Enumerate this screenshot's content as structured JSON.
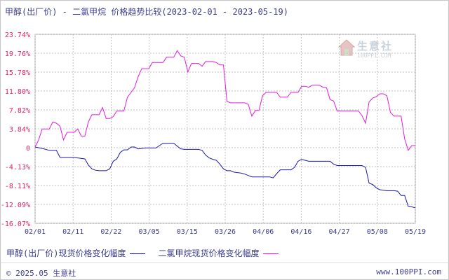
{
  "title": "甲醇(出厂价) - 二氯甲烷 价格趋势比较(2023-02-01 - 2023-05-19)",
  "watermark": {
    "name": "生意社",
    "url": "100PPI.COM",
    "icon": "house-logo-icon"
  },
  "footer": {
    "copyright": "© 2025.05 生意社",
    "site": "www.100PPI.com"
  },
  "colors": {
    "series1": "#1a1aa8",
    "series2": "#e21ce0",
    "ytick": "#e0245e",
    "text": "#3d3d8f",
    "grid": "#c0c0c0"
  },
  "chart_data": {
    "type": "line",
    "x_ticks": [
      "02/01",
      "02/11",
      "02/22",
      "03/05",
      "03/15",
      "03/26",
      "04/06",
      "04/16",
      "04/27",
      "05/08",
      "05/19"
    ],
    "y_ticks": [
      "23.74%",
      "19.76%",
      "15.78%",
      "11.80%",
      "7.82%",
      "3.84%",
      "0",
      "-4.13%",
      "-8.11%",
      "-12.09%",
      "-16.07%"
    ],
    "ylim": [
      -16.07,
      23.74
    ],
    "x_range": [
      "2023-02-01",
      "2023-05-19"
    ],
    "grid": true,
    "legend_position": "bottom",
    "series": [
      {
        "name": "甲醇(出厂价)现货价格变化幅度",
        "values": [
          [
            0,
            0
          ],
          [
            2,
            -0.3
          ],
          [
            4,
            -0.7
          ],
          [
            6,
            -0.7
          ],
          [
            7,
            -2.2
          ],
          [
            8,
            -2.2
          ],
          [
            9,
            -2.2
          ],
          [
            10,
            -2.2
          ],
          [
            11,
            -2.2
          ],
          [
            12,
            -2.3
          ],
          [
            14,
            -2.5
          ],
          [
            15,
            -3.8
          ],
          [
            16,
            -4.6
          ],
          [
            17,
            -4.9
          ],
          [
            18,
            -5.0
          ],
          [
            19,
            -5.0
          ],
          [
            20,
            -5.0
          ],
          [
            21,
            -4.6
          ],
          [
            22,
            -3.0
          ],
          [
            23,
            -2.5
          ],
          [
            24,
            -1.1
          ],
          [
            25,
            -0.6
          ],
          [
            26,
            -0.6
          ],
          [
            27,
            0.0
          ],
          [
            28,
            0.0
          ],
          [
            29,
            -0.4
          ],
          [
            30,
            -0.3
          ],
          [
            31,
            -0.2
          ],
          [
            32,
            -0.2
          ],
          [
            33,
            -0.2
          ],
          [
            34,
            -0.2
          ],
          [
            35,
            0.3
          ],
          [
            36,
            0.8
          ],
          [
            37,
            0.8
          ],
          [
            38,
            0.8
          ],
          [
            39,
            0.8
          ],
          [
            40,
            0.2
          ],
          [
            41,
            -0.4
          ],
          [
            42,
            -0.5
          ],
          [
            43,
            -0.5
          ],
          [
            44,
            -0.5
          ],
          [
            45,
            -0.5
          ],
          [
            46,
            -0.5
          ],
          [
            47,
            -0.7
          ],
          [
            48,
            -1.7
          ],
          [
            49,
            -2.3
          ],
          [
            50,
            -2.6
          ],
          [
            51,
            -2.8
          ],
          [
            52,
            -3.6
          ],
          [
            53,
            -4.6
          ],
          [
            54,
            -5.0
          ],
          [
            55,
            -5.0
          ],
          [
            56,
            -5.3
          ],
          [
            57,
            -5.4
          ],
          [
            58,
            -5.5
          ],
          [
            59,
            -5.7
          ],
          [
            60,
            -6.0
          ],
          [
            61,
            -6.3
          ],
          [
            62,
            -6.3
          ],
          [
            63,
            -6.3
          ],
          [
            64,
            -6.3
          ],
          [
            65,
            -6.3
          ],
          [
            66,
            -6.3
          ],
          [
            67,
            -6.5
          ],
          [
            68,
            -5.6
          ],
          [
            69,
            -4.8
          ],
          [
            70,
            -4.8
          ],
          [
            71,
            -4.8
          ],
          [
            72,
            -4.8
          ],
          [
            73,
            -4.3
          ],
          [
            74,
            -3.0
          ],
          [
            75,
            -2.6
          ],
          [
            76,
            -2.8
          ],
          [
            77,
            -3.0
          ],
          [
            78,
            -3.0
          ],
          [
            79,
            -3.0
          ],
          [
            80,
            -3.0
          ],
          [
            81,
            -3.0
          ],
          [
            82,
            -3.0
          ],
          [
            83,
            -3.0
          ],
          [
            84,
            -3.6
          ],
          [
            85,
            -3.9
          ],
          [
            86,
            -3.9
          ],
          [
            87,
            -3.9
          ],
          [
            88,
            -3.9
          ],
          [
            89,
            -3.9
          ],
          [
            90,
            -3.9
          ],
          [
            91,
            -3.9
          ],
          [
            92,
            -3.9
          ],
          [
            93,
            -4.3
          ],
          [
            94,
            -7.6
          ],
          [
            95,
            -7.9
          ],
          [
            96,
            -8.6
          ],
          [
            97,
            -9.0
          ],
          [
            98,
            -9.1
          ],
          [
            99,
            -9.2
          ],
          [
            100,
            -9.2
          ],
          [
            101,
            -9.2
          ],
          [
            102,
            -9.3
          ],
          [
            103,
            -10.2
          ],
          [
            104,
            -10.2
          ],
          [
            105,
            -12.5
          ],
          [
            106,
            -12.6
          ],
          [
            107,
            -12.8
          ]
        ]
      },
      {
        "name": "二氯甲烷现货价格变化幅度",
        "values": [
          [
            0,
            0
          ],
          [
            1,
            1.5
          ],
          [
            2,
            3.8
          ],
          [
            3,
            3.8
          ],
          [
            4,
            3.8
          ],
          [
            5,
            5.3
          ],
          [
            6,
            5.0
          ],
          [
            7,
            4.4
          ],
          [
            8,
            1.5
          ],
          [
            9,
            3.1
          ],
          [
            10,
            3.1
          ],
          [
            11,
            3.1
          ],
          [
            12,
            3.8
          ],
          [
            13,
            2.3
          ],
          [
            14,
            2.3
          ],
          [
            15,
            5.3
          ],
          [
            16,
            6.8
          ],
          [
            17,
            6.8
          ],
          [
            18,
            6.8
          ],
          [
            19,
            8.3
          ],
          [
            20,
            6.0
          ],
          [
            21,
            6.0
          ],
          [
            22,
            6.4
          ],
          [
            23,
            7.6
          ],
          [
            24,
            7.6
          ],
          [
            25,
            7.6
          ],
          [
            26,
            10.5
          ],
          [
            27,
            11.5
          ],
          [
            28,
            12.5
          ],
          [
            29,
            14.8
          ],
          [
            30,
            16.5
          ],
          [
            31,
            16.5
          ],
          [
            32,
            16.5
          ],
          [
            33,
            17.8
          ],
          [
            34,
            17.8
          ],
          [
            35,
            17.8
          ],
          [
            36,
            17.8
          ],
          [
            37,
            18.9
          ],
          [
            38,
            18.9
          ],
          [
            39,
            18.9
          ],
          [
            40,
            20.3
          ],
          [
            41,
            19.2
          ],
          [
            42,
            18.9
          ],
          [
            43,
            15.8
          ],
          [
            44,
            17.6
          ],
          [
            45,
            17.6
          ],
          [
            46,
            17.6
          ],
          [
            47,
            17.0
          ],
          [
            48,
            18.0
          ],
          [
            49,
            18.0
          ],
          [
            50,
            18.0
          ],
          [
            51,
            17.8
          ],
          [
            52,
            17.3
          ],
          [
            53,
            17.3
          ],
          [
            54,
            9.6
          ],
          [
            55,
            9.3
          ],
          [
            56,
            9.3
          ],
          [
            57,
            9.3
          ],
          [
            58,
            9.3
          ],
          [
            59,
            9.3
          ],
          [
            60,
            9.0
          ],
          [
            61,
            6.5
          ],
          [
            62,
            7.7
          ],
          [
            63,
            7.7
          ],
          [
            64,
            10.8
          ],
          [
            65,
            11.5
          ],
          [
            66,
            11.5
          ],
          [
            67,
            11.5
          ],
          [
            68,
            11.5
          ],
          [
            69,
            10.5
          ],
          [
            70,
            10.5
          ],
          [
            71,
            10.5
          ],
          [
            72,
            11.5
          ],
          [
            73,
            11.5
          ],
          [
            74,
            11.5
          ],
          [
            75,
            12.8
          ],
          [
            76,
            12.8
          ],
          [
            77,
            12.6
          ],
          [
            78,
            13.0
          ],
          [
            79,
            13.0
          ],
          [
            80,
            13.0
          ],
          [
            81,
            12.6
          ],
          [
            82,
            12.5
          ],
          [
            83,
            10.0
          ],
          [
            84,
            9.7
          ],
          [
            85,
            7.6
          ],
          [
            86,
            7.6
          ],
          [
            87,
            7.6
          ],
          [
            88,
            7.6
          ],
          [
            89,
            7.6
          ],
          [
            90,
            7.6
          ],
          [
            91,
            7.6
          ],
          [
            92,
            6.6
          ],
          [
            93,
            5.0
          ],
          [
            94,
            9.5
          ],
          [
            95,
            10.3
          ],
          [
            96,
            10.6
          ],
          [
            97,
            11.2
          ],
          [
            98,
            11.2
          ],
          [
            99,
            10.8
          ],
          [
            100,
            7.3
          ],
          [
            101,
            6.5
          ],
          [
            102,
            6.5
          ],
          [
            103,
            6.5
          ],
          [
            104,
            1.7
          ],
          [
            105,
            -0.7
          ],
          [
            106,
            0.3
          ],
          [
            107,
            0.3
          ]
        ]
      }
    ]
  }
}
